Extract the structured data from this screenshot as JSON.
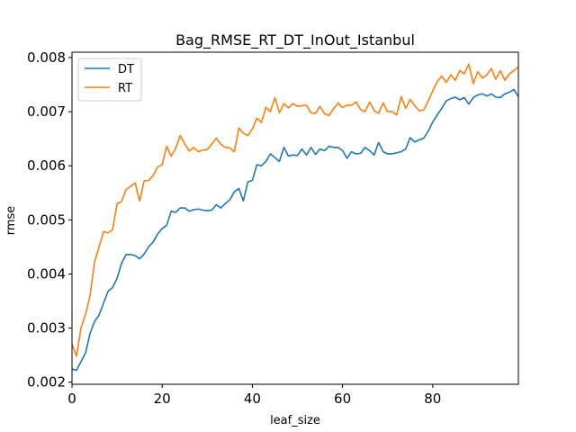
{
  "chart_data": {
    "type": "line",
    "title": "Bag_RMSE_RT_DT_InOut_Istanbul",
    "xlabel": "leaf_size",
    "ylabel": "rmse",
    "xlim": [
      0,
      99
    ],
    "ylim": [
      0.00196,
      0.0081
    ],
    "xticks": [
      0,
      20,
      40,
      60,
      80
    ],
    "xtick_labels": [
      "0",
      "20",
      "40",
      "60",
      "80"
    ],
    "yticks": [
      0.002,
      0.003,
      0.004,
      0.005,
      0.006,
      0.007,
      0.008
    ],
    "ytick_labels": [
      "0.002",
      "0.003",
      "0.004",
      "0.005",
      "0.006",
      "0.007",
      "0.008"
    ],
    "grid": false,
    "legend_position": "top-left",
    "x": [
      0,
      1,
      2,
      3,
      4,
      5,
      6,
      7,
      8,
      9,
      10,
      11,
      12,
      13,
      14,
      15,
      16,
      17,
      18,
      19,
      20,
      21,
      22,
      23,
      24,
      25,
      26,
      27,
      28,
      29,
      30,
      31,
      32,
      33,
      34,
      35,
      36,
      37,
      38,
      39,
      40,
      41,
      42,
      43,
      44,
      45,
      46,
      47,
      48,
      49,
      50,
      51,
      52,
      53,
      54,
      55,
      56,
      57,
      58,
      59,
      60,
      61,
      62,
      63,
      64,
      65,
      66,
      67,
      68,
      69,
      70,
      71,
      72,
      73,
      74,
      75,
      76,
      77,
      78,
      79,
      80,
      81,
      82,
      83,
      84,
      85,
      86,
      87,
      88,
      89,
      90,
      91,
      92,
      93,
      94,
      95,
      96,
      97,
      98,
      99
    ],
    "series": [
      {
        "name": "DT",
        "color": "#1f77b4",
        "values": [
          0.00224,
          0.00222,
          0.00238,
          0.00254,
          0.0029,
          0.00312,
          0.00324,
          0.00346,
          0.00368,
          0.00375,
          0.00392,
          0.0042,
          0.00436,
          0.00436,
          0.00434,
          0.00428,
          0.00437,
          0.0045,
          0.00459,
          0.00474,
          0.00484,
          0.0049,
          0.00516,
          0.00514,
          0.00522,
          0.00522,
          0.00516,
          0.00519,
          0.0052,
          0.00518,
          0.00517,
          0.00518,
          0.00528,
          0.00522,
          0.0053,
          0.00537,
          0.00552,
          0.00558,
          0.00535,
          0.0057,
          0.00573,
          0.00602,
          0.006,
          0.00608,
          0.00622,
          0.00615,
          0.00608,
          0.00634,
          0.00618,
          0.0062,
          0.00619,
          0.00631,
          0.0062,
          0.00634,
          0.00621,
          0.00631,
          0.00628,
          0.00636,
          0.00634,
          0.00634,
          0.00628,
          0.00614,
          0.00626,
          0.00622,
          0.00623,
          0.00634,
          0.00628,
          0.0062,
          0.00643,
          0.00626,
          0.00622,
          0.00622,
          0.00624,
          0.00626,
          0.00631,
          0.00652,
          0.00644,
          0.00648,
          0.00651,
          0.00664,
          0.00681,
          0.00694,
          0.00706,
          0.0072,
          0.00724,
          0.00727,
          0.00722,
          0.00726,
          0.00714,
          0.00726,
          0.00731,
          0.00733,
          0.00729,
          0.00733,
          0.00727,
          0.00726,
          0.00733,
          0.00736,
          0.00741,
          0.00728
        ]
      },
      {
        "name": "RT",
        "color": "#ff7f0e",
        "values": [
          0.0027,
          0.00248,
          0.003,
          0.00325,
          0.0036,
          0.00422,
          0.0045,
          0.00478,
          0.00476,
          0.00482,
          0.0053,
          0.00534,
          0.00556,
          0.00562,
          0.00568,
          0.00535,
          0.00572,
          0.00573,
          0.00582,
          0.00598,
          0.00602,
          0.00636,
          0.00618,
          0.00632,
          0.00656,
          0.0064,
          0.00627,
          0.00634,
          0.00626,
          0.00629,
          0.0063,
          0.0064,
          0.00651,
          0.0064,
          0.00634,
          0.00633,
          0.00626,
          0.0067,
          0.0066,
          0.00656,
          0.00668,
          0.00688,
          0.0068,
          0.00708,
          0.007,
          0.00726,
          0.00698,
          0.00715,
          0.00707,
          0.00715,
          0.0071,
          0.00711,
          0.00712,
          0.00698,
          0.00697,
          0.0071,
          0.00696,
          0.00693,
          0.00705,
          0.00716,
          0.00708,
          0.00712,
          0.00712,
          0.00718,
          0.00704,
          0.007,
          0.00718,
          0.00702,
          0.00697,
          0.00716,
          0.007,
          0.007,
          0.00694,
          0.00728,
          0.00706,
          0.00723,
          0.00711,
          0.00702,
          0.00703,
          0.0072,
          0.00738,
          0.00756,
          0.00766,
          0.00754,
          0.00768,
          0.00758,
          0.00776,
          0.0077,
          0.00788,
          0.00752,
          0.00774,
          0.00762,
          0.00768,
          0.0078,
          0.0076,
          0.00776,
          0.00758,
          0.0077,
          0.00776,
          0.00783
        ]
      }
    ]
  }
}
